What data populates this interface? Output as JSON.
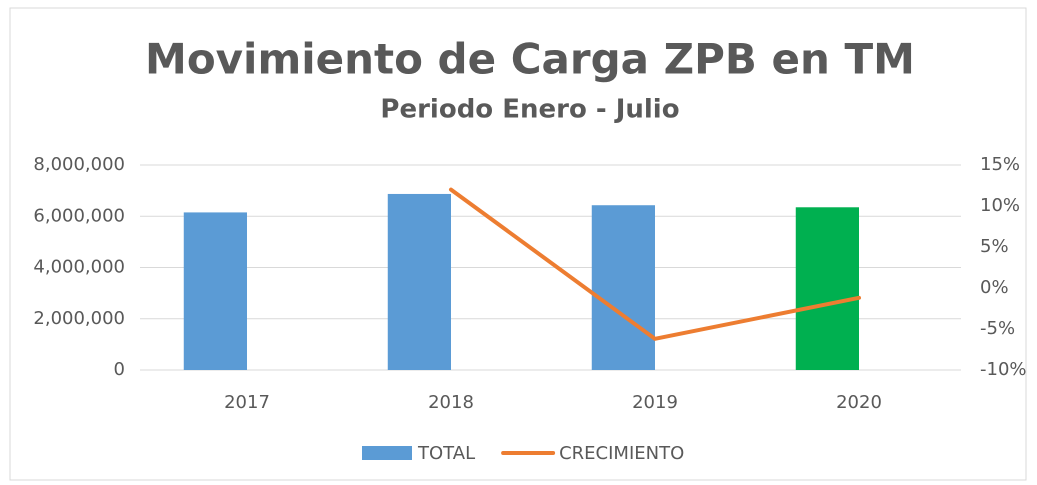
{
  "chart_data": {
    "type": "bar-line",
    "title": "Movimiento de Carga ZPB en TM",
    "subtitle": "Periodo Enero - Julio",
    "categories": [
      "2017",
      "2018",
      "2019",
      "2020"
    ],
    "series": [
      {
        "name": "TOTAL",
        "type": "bar",
        "color": "#5b9bd5",
        "colors": [
          "#5b9bd5",
          "#5b9bd5",
          "#5b9bd5",
          "#00b050"
        ],
        "values": [
          6150000,
          6870000,
          6430000,
          6350000
        ]
      },
      {
        "name": "CRECIMIENTO",
        "type": "line",
        "axis": "y2",
        "color": "#ed7d31",
        "values": [
          null,
          12,
          -6.2,
          -1.2
        ]
      }
    ],
    "ylim": [
      0,
      8000000
    ],
    "yticks": [
      0,
      {
        "value": 2000000,
        "label": "2,000,000"
      },
      {
        "value": 4000000,
        "label": "4,000,000"
      },
      {
        "value": 6000000,
        "label": "6,000,000"
      },
      {
        "value": 8000000,
        "label": "8,000,000"
      }
    ],
    "y2lim": [
      -10,
      15
    ],
    "y2ticks": [
      {
        "value": -10,
        "label": "-10%"
      },
      {
        "value": -5,
        "label": "-5%"
      },
      {
        "value": 0,
        "label": "0%"
      },
      {
        "value": 5,
        "label": "5%"
      },
      {
        "value": 10,
        "label": "10%"
      },
      {
        "value": 15,
        "label": "15%"
      }
    ],
    "grid": true,
    "legend": "bottom"
  }
}
